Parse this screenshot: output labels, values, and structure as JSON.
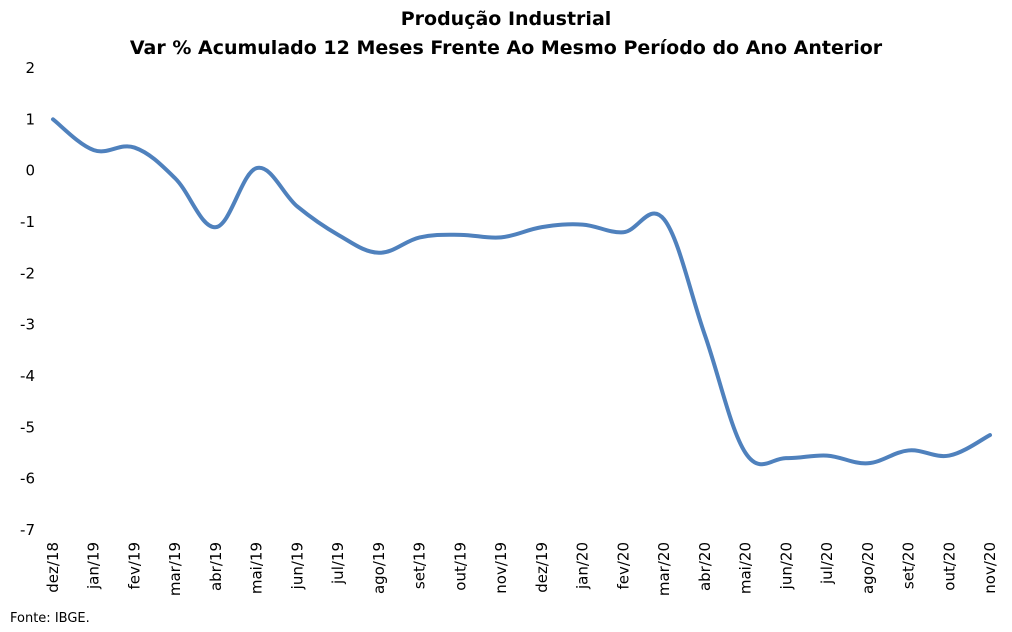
{
  "chart_data": {
    "type": "line",
    "title": "Produção Industrial",
    "subtitle": "Var % Acumulado 12 Meses Frente Ao Mesmo Período do Ano Anterior",
    "xlabel": "",
    "ylabel": "",
    "ylim": [
      -7,
      2
    ],
    "yticks": [
      2,
      1,
      0,
      -1,
      -2,
      -3,
      -4,
      -5,
      -6,
      -7
    ],
    "grid": false,
    "legend": "none",
    "line_color": "#4F81BD",
    "categories": [
      "dez/18",
      "jan/19",
      "fev/19",
      "mar/19",
      "abr/19",
      "mai/19",
      "jun/19",
      "jul/19",
      "ago/19",
      "set/19",
      "out/19",
      "nov/19",
      "dez/19",
      "jan/20",
      "fev/20",
      "mar/20",
      "abr/20",
      "mai/20",
      "jun/20",
      "jul/20",
      "ago/20",
      "set/20",
      "out/20",
      "nov/20"
    ],
    "series": [
      {
        "values": [
          1.0,
          0.4,
          0.45,
          -0.15,
          -1.1,
          0.05,
          -0.7,
          -1.25,
          -1.6,
          -1.3,
          -1.25,
          -1.3,
          -1.1,
          -1.05,
          -1.2,
          -0.95,
          -3.2,
          -5.5,
          -5.6,
          -5.55,
          -5.7,
          -5.45,
          -5.55,
          -5.15
        ]
      }
    ]
  },
  "source": "Fonte: IBGE."
}
